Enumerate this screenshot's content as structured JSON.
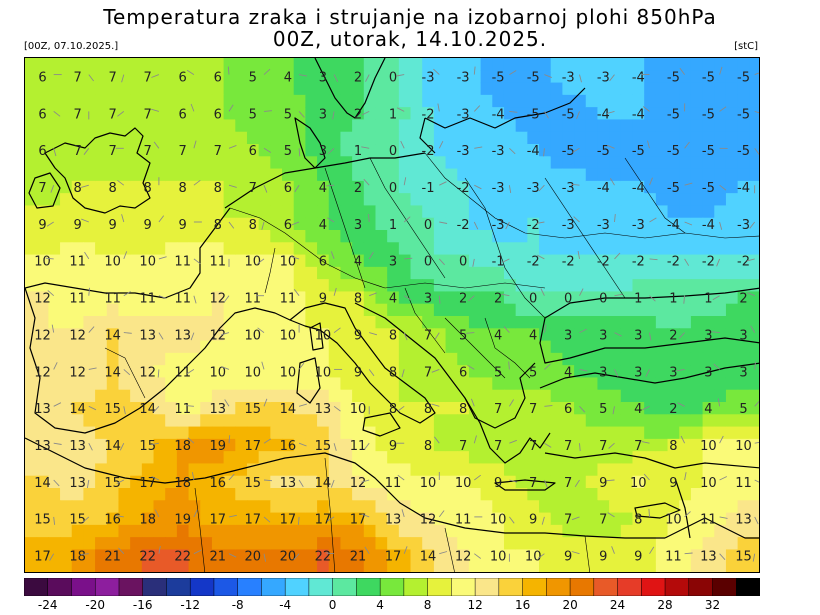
{
  "header": {
    "title_line1": "Temperatura zraka i strujanje na izobarnoj plohi 850hPa",
    "title_line2": "00Z, utorak, 14.10.2025.",
    "run_label": "[00Z, 07.10.2025.]",
    "unit_label": "[stC]"
  },
  "colorbar": {
    "ticks": [
      "-24",
      "-20",
      "-16",
      "-12",
      "-8",
      "-4",
      "0",
      "4",
      "8",
      "12",
      "16",
      "20",
      "24",
      "28",
      "32"
    ],
    "colors": [
      "#3b0a3f",
      "#5a0c5c",
      "#7a108a",
      "#8d1e9e",
      "#6a1360",
      "#2a2f7a",
      "#1c3c9c",
      "#1437c8",
      "#1c58e6",
      "#2880ff",
      "#35a8ff",
      "#50d2ff",
      "#60e8d4",
      "#5ce8a0",
      "#3ed860",
      "#78e83c",
      "#b4f030",
      "#e6f23c",
      "#fafa78",
      "#fae68a",
      "#fad23a",
      "#f5b400",
      "#f09600",
      "#e87800",
      "#e85a28",
      "#e63c28",
      "#e01414",
      "#b40a0a",
      "#8a0505",
      "#5a0000",
      "#000000"
    ]
  },
  "map": {
    "temperature_grid": [
      [
        6,
        7,
        7,
        7,
        6,
        6,
        5,
        4,
        3,
        2,
        0,
        -3,
        -3,
        -5,
        -5,
        -3,
        -3,
        -4,
        -5,
        -5,
        -5
      ],
      [
        6,
        7,
        7,
        7,
        6,
        6,
        5,
        5,
        3,
        2,
        1,
        -2,
        -3,
        -4,
        -5,
        -5,
        -4,
        -4,
        -5,
        -5,
        -5
      ],
      [
        6,
        7,
        7,
        7,
        7,
        7,
        6,
        5,
        3,
        1,
        0,
        -2,
        -3,
        -3,
        -4,
        -5,
        -5,
        -5,
        -5,
        -5,
        -5
      ],
      [
        7,
        8,
        8,
        8,
        8,
        8,
        7,
        6,
        4,
        2,
        0,
        -1,
        -2,
        -3,
        -3,
        -3,
        -4,
        -4,
        -5,
        -5,
        -4
      ],
      [
        9,
        9,
        9,
        9,
        9,
        8,
        8,
        6,
        4,
        3,
        1,
        0,
        -2,
        -3,
        -2,
        -3,
        -3,
        -3,
        -4,
        -4,
        -3
      ],
      [
        10,
        11,
        10,
        10,
        11,
        11,
        10,
        10,
        6,
        4,
        3,
        0,
        0,
        -1,
        -2,
        -2,
        -2,
        -2,
        -2,
        -2,
        -2
      ],
      [
        12,
        11,
        11,
        11,
        11,
        12,
        11,
        11,
        9,
        8,
        4,
        3,
        2,
        2,
        0,
        0,
        0,
        1,
        1,
        1,
        2
      ],
      [
        12,
        12,
        14,
        13,
        13,
        12,
        10,
        10,
        10,
        9,
        8,
        7,
        5,
        4,
        4,
        3,
        3,
        3,
        2,
        3,
        3
      ],
      [
        12,
        12,
        14,
        12,
        11,
        10,
        10,
        10,
        10,
        9,
        8,
        7,
        6,
        5,
        5,
        4,
        3,
        3,
        3,
        3,
        3
      ],
      [
        13,
        14,
        15,
        14,
        11,
        13,
        15,
        14,
        13,
        10,
        8,
        8,
        8,
        7,
        7,
        6,
        5,
        4,
        2,
        4,
        5
      ],
      [
        13,
        13,
        14,
        15,
        18,
        19,
        17,
        16,
        15,
        11,
        9,
        8,
        7,
        7,
        7,
        7,
        7,
        7,
        8,
        10,
        10
      ],
      [
        14,
        13,
        15,
        17,
        18,
        16,
        15,
        13,
        14,
        12,
        11,
        10,
        10,
        9,
        7,
        7,
        9,
        10,
        9,
        10,
        11
      ],
      [
        15,
        15,
        16,
        18,
        19,
        17,
        17,
        17,
        17,
        17,
        13,
        12,
        11,
        10,
        9,
        7,
        7,
        8,
        10,
        11,
        13
      ],
      [
        17,
        18,
        21,
        22,
        22,
        21,
        20,
        20,
        22,
        21,
        17,
        14,
        12,
        10,
        10,
        9,
        9,
        9,
        11,
        13,
        15
      ]
    ],
    "rows_label_y_note": ""
  }
}
